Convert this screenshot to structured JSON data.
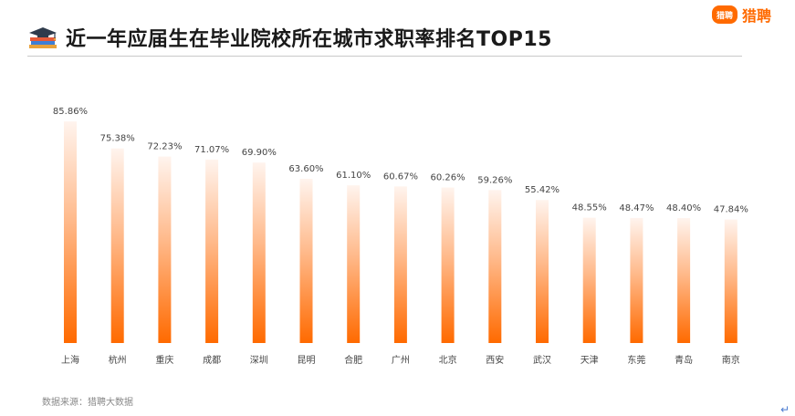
{
  "header": {
    "title": "近一年应届生在毕业院校所在城市求职率排名TOP15",
    "title_icon": "graduation-cap-books-icon"
  },
  "brand": {
    "logo_text": "猎聘",
    "name": "猎聘",
    "color": "#ff6a00"
  },
  "chart_data": {
    "type": "bar",
    "categories": [
      "上海",
      "杭州",
      "重庆",
      "成都",
      "深圳",
      "昆明",
      "合肥",
      "广州",
      "北京",
      "西安",
      "武汉",
      "天津",
      "东莞",
      "青岛",
      "南京"
    ],
    "values": [
      85.86,
      75.38,
      72.23,
      71.07,
      69.9,
      63.6,
      61.1,
      60.67,
      60.26,
      59.26,
      55.42,
      48.55,
      48.47,
      48.4,
      47.84
    ],
    "labels": [
      "85.86%",
      "75.38%",
      "72.23%",
      "71.07%",
      "69.90%",
      "63.60%",
      "61.10%",
      "60.67%",
      "60.26%",
      "59.26%",
      "55.42%",
      "48.55%",
      "48.47%",
      "48.40%",
      "47.84%"
    ],
    "unit": "%",
    "title": "近一年应届生在毕业院校所在城市求职率排名TOP15",
    "ylim": [
      0,
      88
    ],
    "grid": false,
    "legend": "none",
    "bar_gradient": [
      "#fff4ee",
      "#ff6a00"
    ]
  },
  "footer": {
    "source": "数据来源：猎聘大数据",
    "return_symbol": "↵"
  }
}
